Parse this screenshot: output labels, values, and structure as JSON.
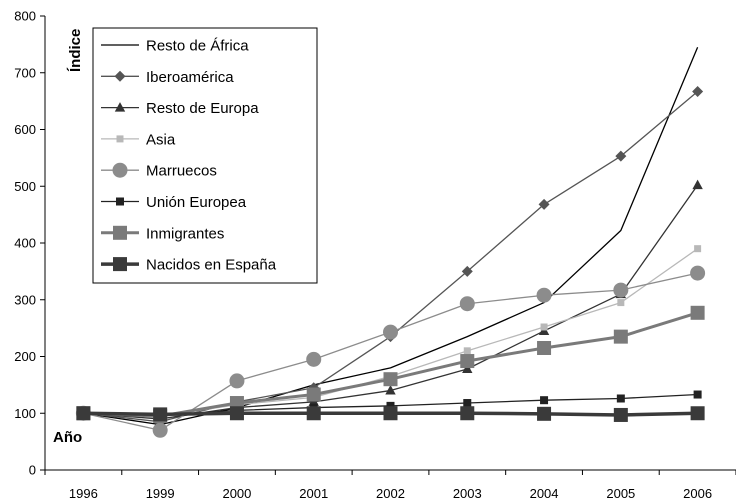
{
  "chart_data": {
    "type": "line",
    "categories": [
      "1996",
      "1999",
      "2000",
      "2001",
      "2002",
      "2003",
      "2004",
      "2005",
      "2006"
    ],
    "ylim": [
      0,
      800
    ],
    "yticks": [
      0,
      100,
      200,
      300,
      400,
      500,
      600,
      700,
      800
    ],
    "ylabel": "Índice",
    "xlabel": "Año",
    "grid": false,
    "legend_position": "top-left",
    "series": [
      {
        "name": "Resto de África",
        "color": "#000000",
        "marker": "none",
        "line_width": 1.3,
        "values": [
          100,
          80,
          110,
          150,
          180,
          235,
          295,
          422,
          745
        ]
      },
      {
        "name": "Iberoamérica",
        "color": "#555555",
        "marker": "diamond",
        "line_width": 1.3,
        "values": [
          100,
          85,
          120,
          145,
          235,
          350,
          468,
          553,
          667
        ]
      },
      {
        "name": "Resto de Europa",
        "color": "#333333",
        "marker": "triangle",
        "line_width": 1.3,
        "values": [
          100,
          90,
          110,
          120,
          140,
          178,
          245,
          310,
          502
        ]
      },
      {
        "name": "Asia",
        "color": "#b8b8b8",
        "marker": "small-square",
        "line_width": 1.3,
        "values": [
          100,
          95,
          115,
          128,
          165,
          210,
          252,
          295,
          390
        ]
      },
      {
        "name": "Marruecos",
        "color": "#8c8c8c",
        "marker": "circle",
        "line_width": 1.3,
        "values": [
          100,
          70,
          157,
          195,
          243,
          293,
          308,
          317,
          347
        ]
      },
      {
        "name": "Unión Europea",
        "color": "#222222",
        "marker": "small-square-dark",
        "line_width": 1.3,
        "values": [
          100,
          96,
          105,
          110,
          113,
          118,
          123,
          126,
          133
        ]
      },
      {
        "name": "Inmigrantes",
        "color": "#7a7a7a",
        "marker": "square",
        "line_width": 3,
        "values": [
          100,
          95,
          118,
          133,
          160,
          192,
          215,
          235,
          277
        ]
      },
      {
        "name": "Nacidos en España",
        "color": "#3a3a3a",
        "marker": "square",
        "line_width": 3.5,
        "values": [
          100,
          98,
          100,
          100,
          100,
          100,
          99,
          97,
          100
        ]
      }
    ]
  }
}
